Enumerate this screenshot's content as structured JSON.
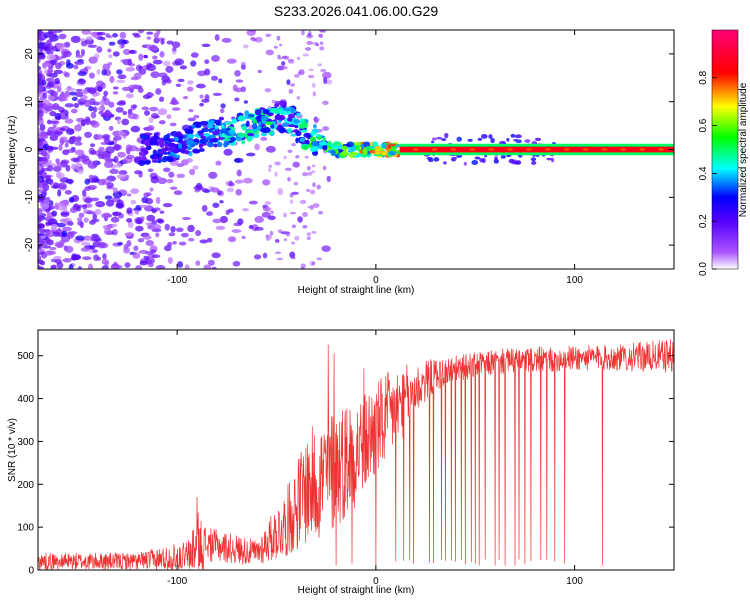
{
  "title": "S233.2026.041.06.00.G29",
  "chart_data": [
    {
      "type": "heatmap",
      "name": "spectrogram",
      "xlabel": "Height of straight line (km)",
      "ylabel": "Frequency (Hz)",
      "xlim": [
        -170,
        150
      ],
      "ylim": [
        -25,
        25
      ],
      "xticks": [
        -100,
        0,
        100
      ],
      "yticks": [
        -20,
        -10,
        0,
        10,
        20
      ],
      "xtick_labels": [
        "-100",
        "0",
        "100"
      ],
      "ytick_labels": [
        "-20",
        "-10",
        "0",
        "10",
        "20"
      ],
      "colorbar": {
        "label": "Normalized spectral amplitude",
        "range": [
          0.0,
          1.0
        ],
        "ticks": [
          0.0,
          0.2,
          0.4,
          0.6,
          0.8
        ],
        "tick_labels": [
          "0.0",
          "0.2",
          "0.4",
          "0.6",
          "0.8"
        ],
        "colormap": [
          "#ffffff",
          "#8800ff",
          "#0000ff",
          "#00ffff",
          "#00ff00",
          "#ffff00",
          "#ff0000",
          "#ff0099"
        ]
      },
      "ridge": {
        "description_points_x_km": [
          -115,
          -100,
          -85,
          -70,
          -55,
          -45,
          -35,
          -20,
          -10,
          0,
          12,
          150
        ],
        "freq_hz": [
          0,
          1,
          3,
          4,
          6,
          7,
          3,
          0,
          0,
          0,
          0,
          0
        ],
        "amplitude": [
          0.3,
          0.35,
          0.4,
          0.45,
          0.5,
          0.4,
          0.5,
          0.6,
          0.7,
          0.75,
          0.85,
          0.85
        ]
      },
      "line": {
        "x_start_km": 12,
        "x_end_km": 150,
        "freq_hz": 0,
        "amplitude": 0.85
      }
    },
    {
      "type": "line",
      "name": "snr",
      "xlabel": "Height of straight line (km)",
      "ylabel": "SNR (10 * v/v)",
      "xlim": [
        -170,
        150
      ],
      "ylim": [
        0,
        560
      ],
      "xticks": [
        -100,
        0,
        100
      ],
      "yticks": [
        0,
        100,
        200,
        300,
        400,
        500
      ],
      "xtick_labels": [
        "-100",
        "0",
        "100"
      ],
      "ytick_labels": [
        "0",
        "100",
        "200",
        "300",
        "400",
        "500"
      ],
      "color": "#ee3333",
      "envelope": {
        "x_km": [
          -170,
          -120,
          -95,
          -90,
          -85,
          -60,
          -45,
          -35,
          -25,
          -15,
          -5,
          5,
          15,
          25,
          30,
          40,
          60,
          80,
          100,
          120,
          150
        ],
        "mean": [
          20,
          20,
          30,
          50,
          60,
          40,
          110,
          190,
          220,
          260,
          300,
          350,
          400,
          440,
          455,
          470,
          485,
          490,
          495,
          495,
          500
        ],
        "spread": [
          20,
          20,
          40,
          90,
          40,
          30,
          80,
          130,
          150,
          140,
          120,
          110,
          80,
          50,
          40,
          30,
          30,
          30,
          30,
          30,
          40
        ]
      },
      "spikes_up": [
        {
          "x": -90,
          "y": 170
        },
        {
          "x": -24,
          "y": 525
        },
        {
          "x": -21,
          "y": 505
        },
        {
          "x": -6,
          "y": 470
        }
      ],
      "dropouts": [
        -20,
        -12,
        0,
        10,
        14,
        17,
        19,
        27,
        29,
        33,
        35,
        38,
        40,
        43,
        45,
        48,
        50,
        52,
        55,
        60,
        62,
        65,
        70,
        72,
        75,
        78,
        83,
        86,
        90,
        95,
        114
      ],
      "dropout_floor": 10
    }
  ]
}
